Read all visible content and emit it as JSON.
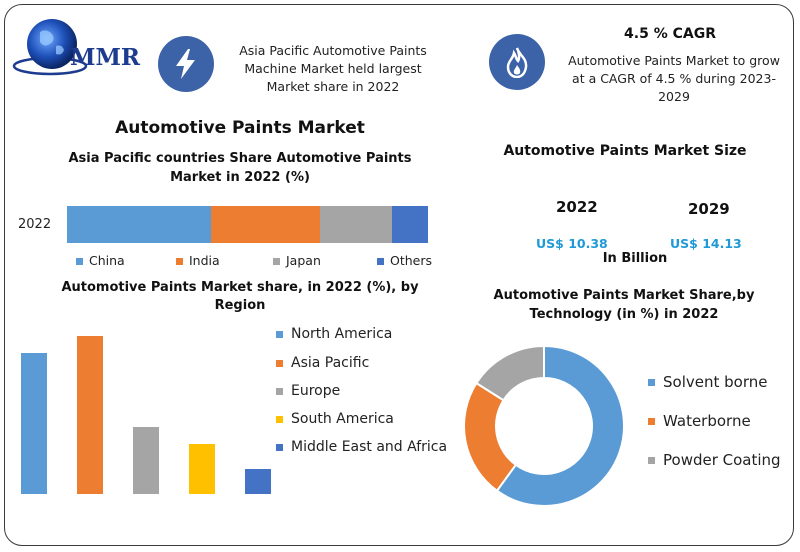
{
  "logo": {
    "text": "MMR"
  },
  "header": {
    "left_text_lines": [
      "Asia Pacific Automotive Paints",
      "Machine Market held largest",
      "Market share in 2022"
    ],
    "cagr_title": "4.5 % CAGR",
    "cagr_lines": [
      "Automotive Paints Market to grow",
      "at a CAGR of 4.5 % during 2023-",
      "2029"
    ],
    "bolt_icon": "lightning-bolt-icon",
    "flame_icon": "flame-icon",
    "icon_color": "#3c62a8"
  },
  "main_title": "Automotive Paints Market",
  "market_size": {
    "title": "Automotive Paints Market Size",
    "years": [
      "2022",
      "2029"
    ],
    "values": [
      "US$ 10.38",
      "US$ 14.13"
    ],
    "unit": "In Billion"
  },
  "colors": {
    "blue": "#5b9bd5",
    "orange": "#ed7d31",
    "gray": "#a5a5a5",
    "yellow": "#ffc000",
    "darkblue": "#4472c4"
  },
  "chart_data": [
    {
      "type": "bar",
      "orientation": "horizontal-stacked",
      "title": "Asia Pacific countries Share Automotive Paints Market in 2022 (%)",
      "categories": [
        "2022"
      ],
      "series": [
        {
          "name": "China",
          "values": [
            40
          ]
        },
        {
          "name": "India",
          "values": [
            30
          ]
        },
        {
          "name": "Japan",
          "values": [
            20
          ]
        },
        {
          "name": "Others",
          "values": [
            10
          ]
        }
      ],
      "legend": "bottom"
    },
    {
      "type": "bar",
      "title": "Automotive Paints Market share, in 2022 (%), by Region",
      "series": [
        {
          "name": "North America",
          "values": [
            34
          ]
        },
        {
          "name": "Asia Pacific",
          "values": [
            38
          ]
        },
        {
          "name": "Europe",
          "values": [
            16
          ]
        },
        {
          "name": "South America",
          "values": [
            12
          ]
        },
        {
          "name": "Middle East and Africa",
          "values": [
            6
          ]
        }
      ],
      "legend": "right"
    },
    {
      "type": "pie",
      "subtype": "donut",
      "title": "Automotive Paints Market Share,by Technology (in %) in 2022",
      "labels": [
        "Solvent borne",
        "Waterborne",
        "Powder Coating"
      ],
      "values": [
        60,
        24,
        16
      ],
      "legend": "right"
    }
  ]
}
